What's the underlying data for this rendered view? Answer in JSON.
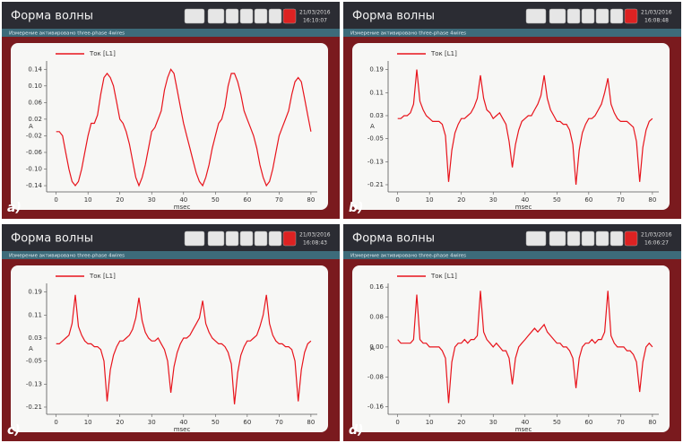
{
  "chart_data": [
    {
      "type": "line",
      "window_title": "Форма волны",
      "status_text": "Измерение активировано three-phase 4wires",
      "date": "21/03/2016",
      "time": "16:10:07",
      "panel_label": "a)",
      "ylabel": "A",
      "xlabel": "msec",
      "x": [
        0,
        1,
        2,
        3,
        4,
        5,
        6,
        7,
        8,
        9,
        10,
        11,
        12,
        13,
        14,
        15,
        16,
        17,
        18,
        19,
        20,
        21,
        22,
        23,
        24,
        25,
        26,
        27,
        28,
        29,
        30,
        31,
        32,
        33,
        34,
        35,
        36,
        37,
        38,
        39,
        40,
        41,
        42,
        43,
        44,
        45,
        46,
        47,
        48,
        49,
        50,
        51,
        52,
        53,
        54,
        55,
        56,
        57,
        58,
        59,
        60,
        61,
        62,
        63,
        64,
        65,
        66,
        67,
        68,
        69,
        70,
        71,
        72,
        73,
        74,
        75,
        76,
        77,
        78,
        79,
        80
      ],
      "series": [
        {
          "name": "Ток [L1]",
          "color": "#e8141c",
          "values": [
            -0.01,
            -0.01,
            -0.02,
            -0.06,
            -0.1,
            -0.13,
            -0.14,
            -0.13,
            -0.1,
            -0.06,
            -0.02,
            0.01,
            0.01,
            0.03,
            0.08,
            0.12,
            0.13,
            0.12,
            0.1,
            0.06,
            0.02,
            0.01,
            -0.01,
            -0.04,
            -0.08,
            -0.12,
            -0.14,
            -0.12,
            -0.09,
            -0.05,
            -0.01,
            0.0,
            0.02,
            0.04,
            0.09,
            0.12,
            0.14,
            0.13,
            0.09,
            0.05,
            0.01,
            -0.02,
            -0.05,
            -0.08,
            -0.11,
            -0.13,
            -0.14,
            -0.12,
            -0.09,
            -0.05,
            -0.02,
            0.01,
            0.02,
            0.05,
            0.1,
            0.13,
            0.13,
            0.11,
            0.08,
            0.04,
            0.02,
            0.0,
            -0.02,
            -0.05,
            -0.09,
            -0.12,
            -0.14,
            -0.13,
            -0.1,
            -0.06,
            -0.02,
            0.0,
            0.02,
            0.04,
            0.08,
            0.11,
            0.12,
            0.11,
            0.07,
            0.03,
            -0.01
          ]
        }
      ],
      "xlim": [
        -3,
        82
      ],
      "xticks": [
        0,
        10,
        20,
        30,
        40,
        50,
        60,
        70,
        80
      ],
      "ylim": [
        -0.155,
        0.16
      ],
      "yticks": [
        0.14,
        {
          "value": 0.1,
          "label": "0.10"
        },
        0.06,
        0.02,
        -0.02,
        -0.06,
        {
          "value": -0.1,
          "label": "-0.10"
        },
        -0.14
      ]
    },
    {
      "type": "line",
      "window_title": "Форма волны",
      "status_text": "Измерение активировано three-phase 4wires",
      "date": "21/03/2016",
      "time": "16:08:48",
      "panel_label": "b)",
      "ylabel": "A",
      "xlabel": "msec",
      "x": [
        0,
        1,
        2,
        3,
        4,
        5,
        6,
        7,
        8,
        9,
        10,
        11,
        12,
        13,
        14,
        15,
        16,
        17,
        18,
        19,
        20,
        21,
        22,
        23,
        24,
        25,
        26,
        27,
        28,
        29,
        30,
        31,
        32,
        33,
        34,
        35,
        36,
        37,
        38,
        39,
        40,
        41,
        42,
        43,
        44,
        45,
        46,
        47,
        48,
        49,
        50,
        51,
        52,
        53,
        54,
        55,
        56,
        57,
        58,
        59,
        60,
        61,
        62,
        63,
        64,
        65,
        66,
        67,
        68,
        69,
        70,
        71,
        72,
        73,
        74,
        75,
        76,
        77,
        78,
        79,
        80
      ],
      "series": [
        {
          "name": "Ток [L1]",
          "color": "#e8141c",
          "values": [
            0.02,
            0.02,
            0.03,
            0.03,
            0.04,
            0.07,
            0.19,
            0.08,
            0.05,
            0.03,
            0.02,
            0.01,
            0.01,
            0.01,
            0.0,
            -0.04,
            -0.2,
            -0.09,
            -0.03,
            0.0,
            0.02,
            0.02,
            0.03,
            0.04,
            0.06,
            0.09,
            0.17,
            0.09,
            0.05,
            0.04,
            0.02,
            0.03,
            0.04,
            0.02,
            0.0,
            -0.06,
            -0.15,
            -0.07,
            -0.02,
            0.01,
            0.02,
            0.03,
            0.03,
            0.05,
            0.07,
            0.1,
            0.17,
            0.09,
            0.05,
            0.03,
            0.01,
            0.01,
            0.0,
            0.0,
            -0.02,
            -0.07,
            -0.21,
            -0.09,
            -0.03,
            0.0,
            0.02,
            0.02,
            0.03,
            0.05,
            0.07,
            0.11,
            0.16,
            0.07,
            0.04,
            0.02,
            0.01,
            0.01,
            0.01,
            0.0,
            -0.01,
            -0.06,
            -0.2,
            -0.08,
            -0.02,
            0.01,
            0.02
          ]
        }
      ],
      "xlim": [
        -3,
        82
      ],
      "xticks": [
        0,
        10,
        20,
        30,
        40,
        50,
        60,
        70,
        80
      ],
      "ylim": [
        -0.235,
        0.22
      ],
      "yticks": [
        0.19,
        0.11,
        0.03,
        -0.05,
        -0.13,
        -0.21
      ]
    },
    {
      "type": "line",
      "window_title": "Форма волны",
      "status_text": "Измерение активировано three-phase 4wires",
      "date": "21/03/2016",
      "time": "16:08:43",
      "panel_label": "c)",
      "ylabel": "A",
      "xlabel": "msec",
      "x": [
        0,
        1,
        2,
        3,
        4,
        5,
        6,
        7,
        8,
        9,
        10,
        11,
        12,
        13,
        14,
        15,
        16,
        17,
        18,
        19,
        20,
        21,
        22,
        23,
        24,
        25,
        26,
        27,
        28,
        29,
        30,
        31,
        32,
        33,
        34,
        35,
        36,
        37,
        38,
        39,
        40,
        41,
        42,
        43,
        44,
        45,
        46,
        47,
        48,
        49,
        50,
        51,
        52,
        53,
        54,
        55,
        56,
        57,
        58,
        59,
        60,
        61,
        62,
        63,
        64,
        65,
        66,
        67,
        68,
        69,
        70,
        71,
        72,
        73,
        74,
        75,
        76,
        77,
        78,
        79,
        80
      ],
      "series": [
        {
          "name": "Ток [L1]",
          "color": "#e8141c",
          "values": [
            0.01,
            0.01,
            0.02,
            0.03,
            0.04,
            0.08,
            0.18,
            0.07,
            0.04,
            0.02,
            0.01,
            0.01,
            0.0,
            0.0,
            -0.01,
            -0.05,
            -0.19,
            -0.08,
            -0.03,
            0.0,
            0.02,
            0.02,
            0.03,
            0.04,
            0.06,
            0.1,
            0.17,
            0.09,
            0.05,
            0.03,
            0.02,
            0.02,
            0.03,
            0.01,
            -0.01,
            -0.05,
            -0.16,
            -0.07,
            -0.02,
            0.01,
            0.03,
            0.03,
            0.04,
            0.06,
            0.08,
            0.1,
            0.16,
            0.08,
            0.05,
            0.03,
            0.02,
            0.01,
            0.01,
            0.0,
            -0.02,
            -0.06,
            -0.2,
            -0.09,
            -0.03,
            0.0,
            0.02,
            0.02,
            0.03,
            0.04,
            0.07,
            0.11,
            0.18,
            0.08,
            0.04,
            0.02,
            0.01,
            0.01,
            0.0,
            0.0,
            -0.01,
            -0.05,
            -0.19,
            -0.08,
            -0.02,
            0.01,
            0.02
          ]
        }
      ],
      "xlim": [
        -3,
        82
      ],
      "xticks": [
        0,
        10,
        20,
        30,
        40,
        50,
        60,
        70,
        80
      ],
      "ylim": [
        -0.235,
        0.22
      ],
      "yticks": [
        0.19,
        0.11,
        0.03,
        -0.05,
        -0.13,
        -0.21
      ]
    },
    {
      "type": "line",
      "window_title": "Форма волны",
      "status_text": "Измерение активировано three-phase 4wires",
      "date": "21/03/2016",
      "time": "16:06:27",
      "panel_label": "d)",
      "ylabel": "A",
      "xlabel": "msec",
      "x": [
        0,
        1,
        2,
        3,
        4,
        5,
        6,
        7,
        8,
        9,
        10,
        11,
        12,
        13,
        14,
        15,
        16,
        17,
        18,
        19,
        20,
        21,
        22,
        23,
        24,
        25,
        26,
        27,
        28,
        29,
        30,
        31,
        32,
        33,
        34,
        35,
        36,
        37,
        38,
        39,
        40,
        41,
        42,
        43,
        44,
        45,
        46,
        47,
        48,
        49,
        50,
        51,
        52,
        53,
        54,
        55,
        56,
        57,
        58,
        59,
        60,
        61,
        62,
        63,
        64,
        65,
        66,
        67,
        68,
        69,
        70,
        71,
        72,
        73,
        74,
        75,
        76,
        77,
        78,
        79,
        80
      ],
      "series": [
        {
          "name": "Ток [L1]",
          "color": "#e8141c",
          "values": [
            0.02,
            0.01,
            0.01,
            0.01,
            0.01,
            0.02,
            0.14,
            0.02,
            0.01,
            0.01,
            0.0,
            0.0,
            0.0,
            0.0,
            -0.01,
            -0.03,
            -0.15,
            -0.04,
            0.0,
            0.01,
            0.01,
            0.02,
            0.01,
            0.02,
            0.02,
            0.03,
            0.15,
            0.04,
            0.02,
            0.01,
            0.0,
            0.01,
            0.0,
            -0.01,
            -0.01,
            -0.03,
            -0.1,
            -0.03,
            0.0,
            0.01,
            0.02,
            0.03,
            0.04,
            0.05,
            0.04,
            0.05,
            0.06,
            0.04,
            0.03,
            0.02,
            0.01,
            0.01,
            0.0,
            0.0,
            -0.01,
            -0.03,
            -0.11,
            -0.03,
            0.0,
            0.01,
            0.01,
            0.02,
            0.01,
            0.02,
            0.02,
            0.04,
            0.15,
            0.03,
            0.01,
            0.0,
            0.0,
            0.0,
            -0.01,
            -0.01,
            -0.02,
            -0.04,
            -0.12,
            -0.04,
            0.0,
            0.01,
            0.0
          ]
        }
      ],
      "xlim": [
        -3,
        82
      ],
      "xticks": [
        0,
        10,
        20,
        30,
        40,
        50,
        60,
        70,
        80
      ],
      "ylim": [
        -0.18,
        0.17
      ],
      "yticks": [
        0.16,
        0.08,
        {
          "value": 0,
          "label": "0.00"
        },
        -0.08,
        -0.16
      ]
    }
  ]
}
